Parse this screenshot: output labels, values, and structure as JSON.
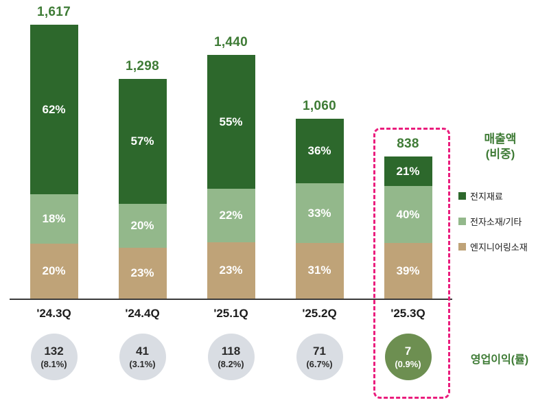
{
  "chart_data": {
    "type": "bar",
    "stacked": true,
    "title": "",
    "xlabel": "",
    "ylabel": "",
    "ylim": [
      0,
      1700
    ],
    "grid": false,
    "legend_position": "right",
    "categories": [
      "'24.3Q",
      "'24.4Q",
      "'25.1Q",
      "'25.2Q",
      "'25.3Q"
    ],
    "totals": [
      1617,
      1298,
      1440,
      1060,
      838
    ],
    "total_labels": [
      "1,617",
      "1,298",
      "1,440",
      "1,060",
      "838"
    ],
    "series": [
      {
        "name": "전지재료",
        "color": "#2d682c",
        "values_pct": [
          62,
          57,
          55,
          36,
          21
        ]
      },
      {
        "name": "전자소재/기타",
        "color": "#93b88b",
        "values_pct": [
          18,
          20,
          22,
          33,
          40
        ]
      },
      {
        "name": "엔지니어링소재",
        "color": "#bfa378",
        "values_pct": [
          20,
          23,
          23,
          31,
          39
        ]
      }
    ],
    "operating_profit": [
      {
        "value": "132",
        "rate": "(8.1%)"
      },
      {
        "value": "41",
        "rate": "(3.1%)"
      },
      {
        "value": "118",
        "rate": "(8.2%)"
      },
      {
        "value": "71",
        "rate": "(6.7%)"
      },
      {
        "value": "7",
        "rate": "(0.9%)"
      }
    ],
    "highlight_index": 4
  },
  "legend": {
    "title_line1": "매출액",
    "title_line2": "(비중)"
  },
  "footer": {
    "operating_profit_label": "영업이익(률)"
  },
  "colors": {
    "total_label_text": "#3e7b35",
    "segment_text": "#ffffff",
    "circle_bg": "#d9dde3",
    "circle_highlight_bg": "#6d8f51",
    "highlight_border": "#ea1d7d",
    "axis_line": "#3a3a3a"
  }
}
